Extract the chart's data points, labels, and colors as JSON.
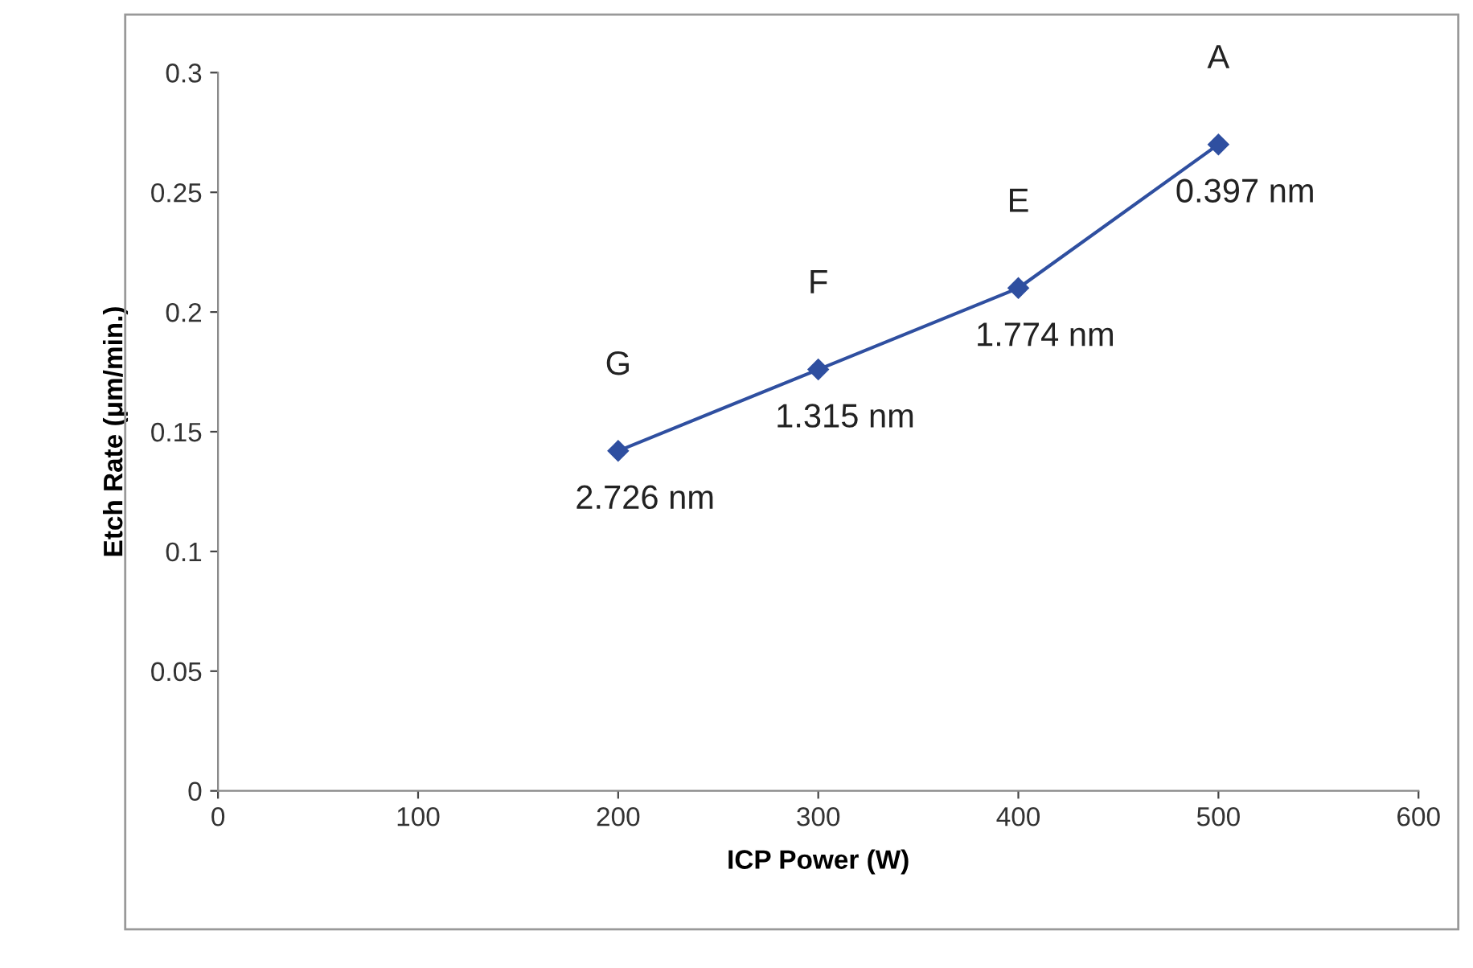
{
  "chart_data": {
    "type": "line",
    "xlabel": "ICP Power (W)",
    "ylabel": "Etch Rate (μm/min.)",
    "x": [
      200,
      300,
      400,
      500
    ],
    "series": [
      {
        "color": "#2f4fa0",
        "values": [
          0.142,
          0.176,
          0.21,
          0.27
        ]
      }
    ],
    "xlim": [
      0,
      600
    ],
    "xticks": [
      0,
      100,
      200,
      300,
      400,
      500,
      600
    ],
    "ylim": [
      0,
      0.3
    ],
    "yticks": [
      0,
      0.05,
      0.1,
      0.15,
      0.2,
      0.25,
      0.3
    ],
    "grid": false,
    "legend": false,
    "marker": "diamond",
    "line_style": "solid",
    "annotations": [
      {
        "text": "G",
        "x": 200,
        "y": 0.142
      },
      {
        "text": "F",
        "x": 300,
        "y": 0.176
      },
      {
        "text": "E",
        "x": 400,
        "y": 0.21
      },
      {
        "text": "A",
        "x": 500,
        "y": 0.27
      },
      {
        "text": "2.726 nm",
        "x": 200,
        "y": 0.142
      },
      {
        "text": "1.315 nm",
        "x": 300,
        "y": 0.176
      },
      {
        "text": "1.774 nm",
        "x": 400,
        "y": 0.21
      },
      {
        "text": "0.397 nm",
        "x": 500,
        "y": 0.27
      }
    ]
  }
}
